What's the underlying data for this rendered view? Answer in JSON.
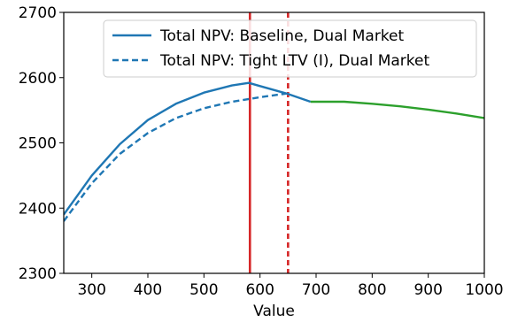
{
  "chart_data": {
    "type": "line",
    "title": "",
    "xlabel": "Value",
    "ylabel": "",
    "xlim": [
      250,
      1000
    ],
    "ylim": [
      2300,
      2700
    ],
    "xticks": [
      300,
      400,
      500,
      600,
      700,
      800,
      900,
      1000
    ],
    "yticks": [
      2300,
      2400,
      2500,
      2600,
      2700
    ],
    "grid": false,
    "legend_position": "top-right",
    "series": [
      {
        "name": "Total NPV: Baseline, Dual Market",
        "style": "solid",
        "color": "#1f77b4",
        "x": [
          250,
          300,
          350,
          400,
          450,
          500,
          550,
          580,
          600,
          650,
          690
        ],
        "y": [
          2390,
          2450,
          2498,
          2535,
          2560,
          2577,
          2588,
          2592,
          2587,
          2575,
          2563
        ]
      },
      {
        "name": "Total NPV: Tight LTV (I), Dual Market",
        "style": "dashed",
        "color": "#1f77b4",
        "x": [
          250,
          300,
          350,
          400,
          450,
          500,
          550,
          600,
          650
        ],
        "y": [
          2380,
          2438,
          2483,
          2515,
          2538,
          2553,
          2563,
          2570,
          2576
        ]
      },
      {
        "name": "",
        "style": "solid",
        "color": "#2ca02c",
        "x": [
          690,
          750,
          800,
          850,
          900,
          950,
          1000
        ],
        "y": [
          2563,
          2563,
          2560,
          2556,
          2551,
          2545,
          2538
        ]
      }
    ],
    "vlines": [
      {
        "x": 582,
        "style": "solid",
        "color": "#d62728"
      },
      {
        "x": 650,
        "style": "dashed",
        "color": "#d62728"
      }
    ]
  }
}
